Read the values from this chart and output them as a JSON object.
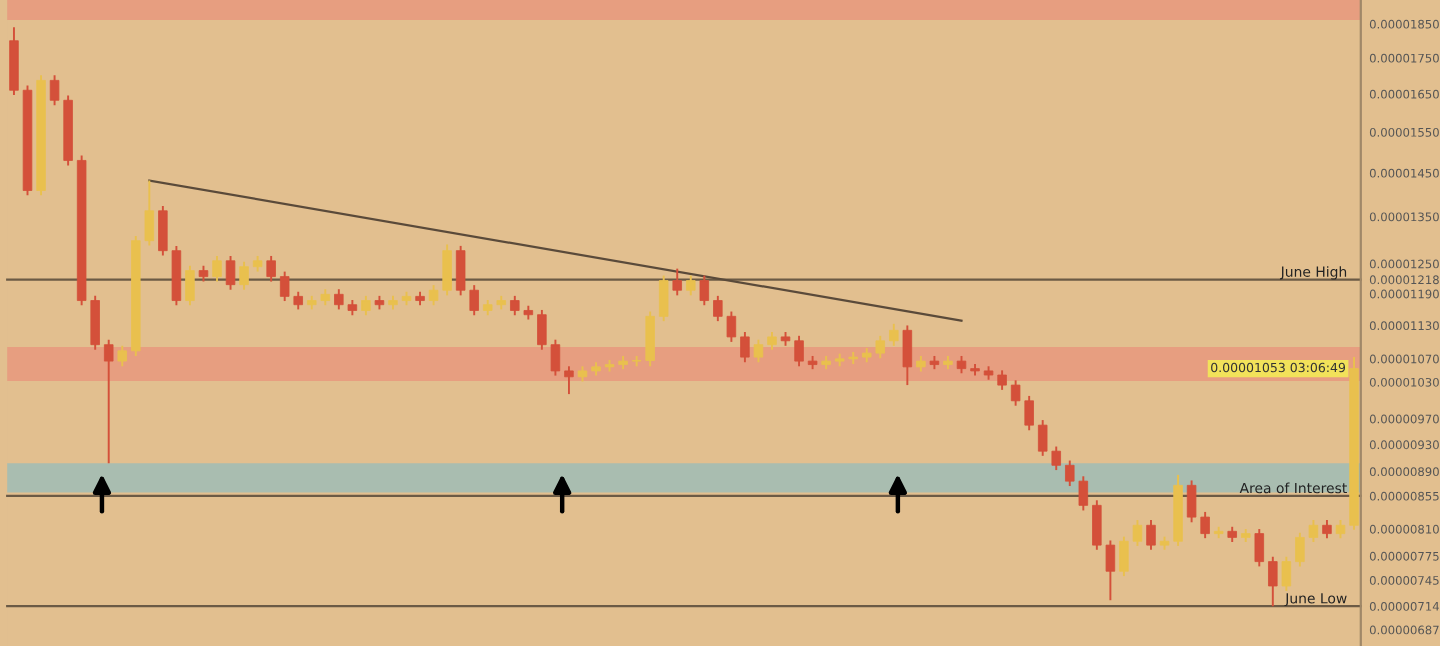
{
  "chart_data": {
    "type": "candlestick",
    "log": "y",
    "tick_labels": "y",
    "grid": false,
    "legend": false,
    "annotations": [
      "0.00001053 03:06:49"
    ],
    "categories": [
      null,
      null,
      null,
      null,
      null,
      null,
      null,
      null,
      null,
      null,
      null,
      null,
      null,
      null,
      null,
      null,
      null,
      null,
      null,
      null,
      null,
      null,
      null,
      null,
      null,
      null,
      null,
      null,
      null,
      null,
      null,
      null,
      null,
      null,
      null,
      null,
      null,
      null,
      null,
      null,
      null,
      null,
      null,
      null,
      null,
      null,
      null,
      null,
      null,
      null,
      null,
      null,
      null,
      null,
      null,
      null,
      null,
      null,
      null,
      null,
      null,
      null,
      null,
      null,
      null,
      null,
      null,
      null,
      null,
      null,
      null,
      null,
      null,
      null,
      null,
      null,
      null,
      null,
      null,
      null,
      null,
      null,
      null,
      null,
      null,
      null,
      null,
      null,
      null,
      null,
      null,
      null,
      null,
      null,
      null,
      null,
      null,
      null,
      null,
      null
    ],
    "ylim": [
      6.69e-06,
      1.924e-05
    ],
    "yticks": [
      {
        "value": 1.85e-05,
        "label": "0.00001850"
      },
      {
        "value": 1.75e-05,
        "label": "0.00001750"
      },
      {
        "value": 1.65e-05,
        "label": "0.00001650"
      },
      {
        "value": 1.55e-05,
        "label": "0.00001550"
      },
      {
        "value": 1.45e-05,
        "label": "0.00001450"
      },
      {
        "value": 1.35e-05,
        "label": "0.00001350"
      },
      {
        "value": 1.25e-05,
        "label": "0.00001250"
      },
      {
        "value": 1.218e-05,
        "label": "0.00001218"
      },
      {
        "value": 1.19e-05,
        "label": "0.00001190"
      },
      {
        "value": 1.13e-05,
        "label": "0.00001130"
      },
      {
        "value": 1.07e-05,
        "label": "0.00001070"
      },
      {
        "value": 1.03e-05,
        "label": "0.00001030"
      },
      {
        "value": 9.7e-06,
        "label": "0.00000970"
      },
      {
        "value": 9.3e-06,
        "label": "0.00000930"
      },
      {
        "value": 8.9e-06,
        "label": "0.00000890"
      },
      {
        "value": 8.55e-06,
        "label": "0.00000855"
      },
      {
        "value": 8.1e-06,
        "label": "0.00000810"
      },
      {
        "value": 7.75e-06,
        "label": "0.00000775"
      },
      {
        "value": 7.45e-06,
        "label": "0.00000745"
      },
      {
        "value": 7.14e-06,
        "label": "0.00000714"
      },
      {
        "value": 6.87e-06,
        "label": "0.00000687"
      }
    ],
    "ohlc": [
      [
        1.8e-05,
        1.84e-05,
        1.647e-05,
        1.66e-05
      ],
      [
        1.66e-05,
        1.673e-05,
        1.398e-05,
        1.409e-05
      ],
      [
        1.409e-05,
        1.701e-05,
        1.398e-05,
        1.687e-05
      ],
      [
        1.687e-05,
        1.701e-05,
        1.62e-05,
        1.633e-05
      ],
      [
        1.633e-05,
        1.646e-05,
        1.468e-05,
        1.48e-05
      ],
      [
        1.48e-05,
        1.492e-05,
        1.168e-05,
        1.177e-05
      ],
      [
        1.177e-05,
        1.186e-05,
        1.086e-05,
        1.095e-05
      ],
      [
        1.095e-05,
        1.104e-05,
        9.02e-06,
        1.066e-05
      ],
      [
        1.066e-05,
        1.093e-05,
        1.057e-05,
        1.084e-05
      ],
      [
        1.084e-05,
        1.308e-05,
        1.075e-05,
        1.298e-05
      ],
      [
        1.298e-05,
        1.432e-05,
        1.288e-05,
        1.363e-05
      ],
      [
        1.363e-05,
        1.374e-05,
        1.267e-05,
        1.277e-05
      ],
      [
        1.277e-05,
        1.287e-05,
        1.168e-05,
        1.177e-05
      ],
      [
        1.177e-05,
        1.246e-05,
        1.168e-05,
        1.236e-05
      ],
      [
        1.236e-05,
        1.246e-05,
        1.214e-05,
        1.224e-05
      ],
      [
        1.224e-05,
        1.266e-05,
        1.214e-05,
        1.256e-05
      ],
      [
        1.256e-05,
        1.266e-05,
        1.198e-05,
        1.208e-05
      ],
      [
        1.208e-05,
        1.254e-05,
        1.198e-05,
        1.244e-05
      ],
      [
        1.244e-05,
        1.266e-05,
        1.234e-05,
        1.256e-05
      ],
      [
        1.256e-05,
        1.266e-05,
        1.214e-05,
        1.224e-05
      ],
      [
        1.224e-05,
        1.234e-05,
        1.176e-05,
        1.185e-05
      ],
      [
        1.185e-05,
        1.194e-05,
        1.16e-05,
        1.169e-05
      ],
      [
        1.169e-05,
        1.186e-05,
        1.16e-05,
        1.177e-05
      ],
      [
        1.177e-05,
        1.199e-05,
        1.168e-05,
        1.189e-05
      ],
      [
        1.189e-05,
        1.199e-05,
        1.16e-05,
        1.169e-05
      ],
      [
        1.169e-05,
        1.178e-05,
        1.149e-05,
        1.158e-05
      ],
      [
        1.158e-05,
        1.186e-05,
        1.149e-05,
        1.177e-05
      ],
      [
        1.177e-05,
        1.186e-05,
        1.16e-05,
        1.169e-05
      ],
      [
        1.169e-05,
        1.186e-05,
        1.16e-05,
        1.177e-05
      ],
      [
        1.177e-05,
        1.194e-05,
        1.168e-05,
        1.185e-05
      ],
      [
        1.185e-05,
        1.194e-05,
        1.168e-05,
        1.177e-05
      ],
      [
        1.177e-05,
        1.207e-05,
        1.168e-05,
        1.197e-05
      ],
      [
        1.197e-05,
        1.29e-05,
        1.187e-05,
        1.277e-05
      ],
      [
        1.277e-05,
        1.287e-05,
        1.187e-05,
        1.197e-05
      ],
      [
        1.197e-05,
        1.207e-05,
        1.149e-05,
        1.158e-05
      ],
      [
        1.158e-05,
        1.178e-05,
        1.149e-05,
        1.169e-05
      ],
      [
        1.169e-05,
        1.186e-05,
        1.16e-05,
        1.177e-05
      ],
      [
        1.177e-05,
        1.186e-05,
        1.149e-05,
        1.158e-05
      ],
      [
        1.158e-05,
        1.167e-05,
        1.141e-05,
        1.15e-05
      ],
      [
        1.15e-05,
        1.159e-05,
        1.086e-05,
        1.095e-05
      ],
      [
        1.095e-05,
        1.104e-05,
        1.041e-05,
        1.049e-05
      ],
      [
        1.049e-05,
        1.057e-05,
        1.01e-05,
        1.039e-05
      ],
      [
        1.039e-05,
        1.057e-05,
        1.031e-05,
        1.049e-05
      ],
      [
        1.049e-05,
        1.064e-05,
        1.041e-05,
        1.056e-05
      ],
      [
        1.056e-05,
        1.068e-05,
        1.048e-05,
        1.06e-05
      ],
      [
        1.06e-05,
        1.075e-05,
        1.052e-05,
        1.066e-05
      ],
      [
        1.066e-05,
        1.075e-05,
        1.057e-05,
        1.067e-05
      ],
      [
        1.067e-05,
        1.156e-05,
        1.057e-05,
        1.147e-05
      ],
      [
        1.147e-05,
        1.226e-05,
        1.138e-05,
        1.216e-05
      ],
      [
        1.216e-05,
        1.24e-05,
        1.187e-05,
        1.197e-05
      ],
      [
        1.197e-05,
        1.226e-05,
        1.187e-05,
        1.216e-05
      ],
      [
        1.216e-05,
        1.226e-05,
        1.168e-05,
        1.177e-05
      ],
      [
        1.177e-05,
        1.186e-05,
        1.138e-05,
        1.147e-05
      ],
      [
        1.147e-05,
        1.156e-05,
        1.1e-05,
        1.109e-05
      ],
      [
        1.109e-05,
        1.118e-05,
        1.064e-05,
        1.073e-05
      ],
      [
        1.073e-05,
        1.104e-05,
        1.064e-05,
        1.095e-05
      ],
      [
        1.095e-05,
        1.118e-05,
        1.086e-05,
        1.109e-05
      ],
      [
        1.109e-05,
        1.118e-05,
        1.093e-05,
        1.102e-05
      ],
      [
        1.102e-05,
        1.111e-05,
        1.057e-05,
        1.066e-05
      ],
      [
        1.066e-05,
        1.075e-05,
        1.052e-05,
        1.06e-05
      ],
      [
        1.06e-05,
        1.075e-05,
        1.052e-05,
        1.066e-05
      ],
      [
        1.066e-05,
        1.079e-05,
        1.057e-05,
        1.07e-05
      ],
      [
        1.07e-05,
        1.082e-05,
        1.061e-05,
        1.073e-05
      ],
      [
        1.073e-05,
        1.089e-05,
        1.064e-05,
        1.08e-05
      ],
      [
        1.08e-05,
        1.111e-05,
        1.071e-05,
        1.102e-05
      ],
      [
        1.102e-05,
        1.133e-05,
        1.093e-05,
        1.121e-05
      ],
      [
        1.121e-05,
        1.13e-05,
        1.025e-05,
        1.056e-05
      ],
      [
        1.056e-05,
        1.075e-05,
        1.048e-05,
        1.066e-05
      ],
      [
        1.066e-05,
        1.075e-05,
        1.052e-05,
        1.06e-05
      ],
      [
        1.06e-05,
        1.075e-05,
        1.052e-05,
        1.066e-05
      ],
      [
        1.066e-05,
        1.075e-05,
        1.045e-05,
        1.053e-05
      ],
      [
        1.053e-05,
        1.061e-05,
        1.041e-05,
        1.049e-05
      ],
      [
        1.049e-05,
        1.057e-05,
        1.034e-05,
        1.042e-05
      ],
      [
        1.042e-05,
        1.05e-05,
        1.017e-05,
        1.025e-05
      ],
      [
        1.025e-05,
        1.033e-05,
        9.91e-06,
        9.99e-06
      ],
      [
        9.99e-06,
        1.007e-05,
        9.52e-06,
        9.6e-06
      ],
      [
        9.6e-06,
        9.68e-06,
        9.13e-06,
        9.2e-06
      ],
      [
        9.2e-06,
        9.27e-06,
        8.92e-06,
        8.99e-06
      ],
      [
        8.99e-06,
        9.06e-06,
        8.69e-06,
        8.76e-06
      ],
      [
        8.76e-06,
        8.83e-06,
        8.35e-06,
        8.42e-06
      ],
      [
        8.42e-06,
        8.49e-06,
        7.83e-06,
        7.89e-06
      ],
      [
        7.89e-06,
        7.95e-06,
        7.21e-06,
        7.56e-06
      ],
      [
        7.56e-06,
        8e-06,
        7.5e-06,
        7.94e-06
      ],
      [
        7.94e-06,
        8.22e-06,
        7.88e-06,
        8.15e-06
      ],
      [
        8.15e-06,
        8.22e-06,
        7.83e-06,
        7.89e-06
      ],
      [
        7.89e-06,
        8e-06,
        7.83e-06,
        7.94e-06
      ],
      [
        7.94e-06,
        8.85e-06,
        7.88e-06,
        8.7e-06
      ],
      [
        8.7e-06,
        8.77e-06,
        8.19e-06,
        8.26e-06
      ],
      [
        8.26e-06,
        8.33e-06,
        7.98e-06,
        8.04e-06
      ],
      [
        8.04e-06,
        8.13e-06,
        7.98e-06,
        8.07e-06
      ],
      [
        8.07e-06,
        8.13e-06,
        7.93e-06,
        7.99e-06
      ],
      [
        7.99e-06,
        8.1e-06,
        7.93e-06,
        8.04e-06
      ],
      [
        8.04e-06,
        8.1e-06,
        7.62e-06,
        7.68e-06
      ],
      [
        7.68e-06,
        7.74e-06,
        7.14e-06,
        7.38e-06
      ],
      [
        7.38e-06,
        7.74e-06,
        7.32e-06,
        7.68e-06
      ],
      [
        7.68e-06,
        8.05e-06,
        7.62e-06,
        7.99e-06
      ],
      [
        7.99e-06,
        8.22e-06,
        7.93e-06,
        8.15e-06
      ],
      [
        8.15e-06,
        8.22e-06,
        7.98e-06,
        8.04e-06
      ],
      [
        8.04e-06,
        8.22e-06,
        7.98e-06,
        8.15e-06
      ],
      [
        8.15e-06,
        1.073e-05,
        8.09e-06,
        1.053e-05
      ]
    ],
    "colors": [
      "#d4503a",
      "#d4503a",
      "#e9c04e",
      "#d4503a",
      "#d4503a",
      "#d4503a",
      "#d4503a",
      "#d4503a",
      "#e9c04e",
      "#e9c04e",
      "#e9c04e",
      "#d4503a",
      "#d4503a",
      "#e9c04e",
      "#d4503a",
      "#e9c04e",
      "#d4503a",
      "#e9c04e",
      "#e9c04e",
      "#d4503a",
      "#d4503a",
      "#d4503a",
      "#e9c04e",
      "#e9c04e",
      "#d4503a",
      "#d4503a",
      "#e9c04e",
      "#d4503a",
      "#e9c04e",
      "#e9c04e",
      "#d4503a",
      "#e9c04e",
      "#e9c04e",
      "#d4503a",
      "#d4503a",
      "#e9c04e",
      "#e9c04e",
      "#d4503a",
      "#d4503a",
      "#d4503a",
      "#d4503a",
      "#d4503a",
      "#e9c04e",
      "#e9c04e",
      "#e9c04e",
      "#e9c04e",
      "#e9c04e",
      "#e9c04e",
      "#e9c04e",
      "#d4503a",
      "#e9c04e",
      "#d4503a",
      "#d4503a",
      "#d4503a",
      "#d4503a",
      "#e9c04e",
      "#e9c04e",
      "#d4503a",
      "#d4503a",
      "#d4503a",
      "#e9c04e",
      "#e9c04e",
      "#e9c04e",
      "#e9c04e",
      "#e9c04e",
      "#e9c04e",
      "#d4503a",
      "#e9c04e",
      "#d4503a",
      "#e9c04e",
      "#d4503a",
      "#d4503a",
      "#d4503a",
      "#d4503a",
      "#d4503a",
      "#d4503a",
      "#d4503a",
      "#d4503a",
      "#d4503a",
      "#d4503a",
      "#d4503a",
      "#d4503a",
      "#e9c04e",
      "#e9c04e",
      "#d4503a",
      "#e9c04e",
      "#e9c04e",
      "#d4503a",
      "#d4503a",
      "#e9c04e",
      "#d4503a",
      "#e9c04e",
      "#d4503a",
      "#d4503a",
      "#e9c04e",
      "#e9c04e",
      "#e9c04e",
      "#d4503a",
      "#e9c04e",
      "#e9c04e"
    ],
    "series": [
      {
        "type": "line",
        "color": "#5a4a3a",
        "values": [
          null,
          null,
          null,
          null,
          null,
          null,
          null,
          null,
          null,
          null,
          1.432e-05,
          null,
          null,
          null,
          null,
          null,
          null,
          null,
          null,
          null,
          null,
          null,
          null,
          null,
          null,
          null,
          null,
          null,
          null,
          null,
          null,
          null,
          null,
          null,
          null,
          null,
          null,
          null,
          null,
          null,
          null,
          null,
          null,
          null,
          null,
          null,
          null,
          null,
          null,
          null,
          null,
          null,
          null,
          null,
          null,
          null,
          null,
          null,
          null,
          null,
          null,
          null,
          null,
          null,
          null,
          null,
          null,
          null,
          null,
          null,
          1.139e-05,
          null,
          null,
          null,
          null,
          null,
          null,
          null,
          null,
          null,
          null,
          null,
          null,
          null,
          null,
          null,
          null,
          null,
          null,
          null,
          null,
          null,
          null,
          null,
          null,
          null,
          null,
          null,
          null,
          null
        ]
      }
    ],
    "ref_lines": [
      {
        "axis": "y",
        "value": 1.218e-05,
        "label": "June High",
        "color": "#6b5a45"
      },
      {
        "axis": "y",
        "value": 8.55e-06,
        "label": "Area of Interest",
        "color": "#6b5a45"
      },
      {
        "axis": "y",
        "value": 7.14e-06,
        "label": "June Low",
        "color": "#6b5a45"
      }
    ],
    "bands": [
      {
        "axis": "y",
        "from": 1.862e-05,
        "to": 1.924e-05,
        "color": "#e79e80"
      },
      {
        "axis": "y",
        "from": 1.032e-05,
        "to": 1.091e-05,
        "color": "#e79e80"
      },
      {
        "axis": "y",
        "from": 8.6e-06,
        "to": 9.02e-06,
        "color": "#a9bdb0"
      }
    ]
  }
}
